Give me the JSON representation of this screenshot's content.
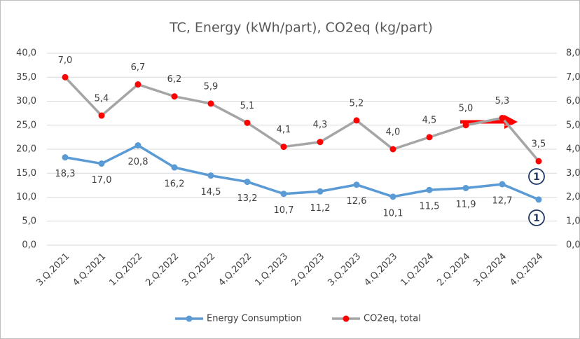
{
  "chart_data": {
    "type": "line",
    "title": "TC, Energy (kWh/part), CO2eq (kg/part)",
    "categories": [
      "3.Q.2021",
      "4.Q.2021",
      "1.Q.2022",
      "2.Q.2022",
      "3.Q.2022",
      "4.Q.2022",
      "1.Q.2023",
      "2.Q.2023",
      "3.Q.2023",
      "4.Q.2023",
      "1.Q.2024",
      "2.Q.2024",
      "3.Q.2024",
      "4.Q.2024"
    ],
    "series": [
      {
        "name": "Energy Consumption",
        "color": "#5b9bd5",
        "marker_color": "#5b9bd5",
        "axis": "y",
        "label_position": "below",
        "values": [
          18.3,
          17.0,
          20.8,
          16.2,
          14.5,
          13.2,
          10.7,
          11.2,
          12.6,
          10.1,
          11.5,
          11.9,
          12.7,
          9.5
        ],
        "value_labels": [
          "18,3",
          "17,0",
          "20,8",
          "16,2",
          "14,5",
          "13,2",
          "10,7",
          "11,2",
          "12,6",
          "10,1",
          "11,5",
          "11,9",
          "12,7",
          null
        ]
      },
      {
        "name": "CO2eq, total",
        "color": "#a5a5a5",
        "marker_color": "#ff0000",
        "axis": "y2",
        "label_position": "above",
        "values": [
          7.0,
          5.4,
          6.7,
          6.2,
          5.9,
          5.1,
          4.1,
          4.3,
          5.2,
          4.0,
          4.5,
          5.0,
          5.3,
          3.5
        ],
        "value_labels": [
          "7,0",
          "5,4",
          "6,7",
          "6,2",
          "5,9",
          "5,1",
          "4,1",
          "4,3",
          "5,2",
          "4,0",
          "4,5",
          "5,0",
          "5,3",
          "3,5"
        ]
      }
    ],
    "ylim": [
      0,
      40
    ],
    "yticks": [
      {
        "value": 0,
        "label": "0,0"
      },
      {
        "value": 5,
        "label": "5,0"
      },
      {
        "value": 10,
        "label": "10,0"
      },
      {
        "value": 15,
        "label": "15,0"
      },
      {
        "value": 20,
        "label": "20,0"
      },
      {
        "value": 25,
        "label": "25,0"
      },
      {
        "value": 30,
        "label": "30,0"
      },
      {
        "value": 35,
        "label": "35,0"
      },
      {
        "value": 40,
        "label": "40,0"
      }
    ],
    "y2lim": [
      0,
      8
    ],
    "y2ticks": [
      {
        "value": 0,
        "label": "0,0"
      },
      {
        "value": 1,
        "label": "1,0"
      },
      {
        "value": 2,
        "label": "2,0"
      },
      {
        "value": 3,
        "label": "3,0"
      },
      {
        "value": 4,
        "label": "4,0"
      },
      {
        "value": 5,
        "label": "5,0"
      },
      {
        "value": 6,
        "label": "6,0"
      },
      {
        "value": 7,
        "label": "7,0"
      },
      {
        "value": 8,
        "label": "8,0"
      }
    ],
    "grid": true,
    "legend": "bottom",
    "annotations": [
      "1",
      "1"
    ]
  }
}
